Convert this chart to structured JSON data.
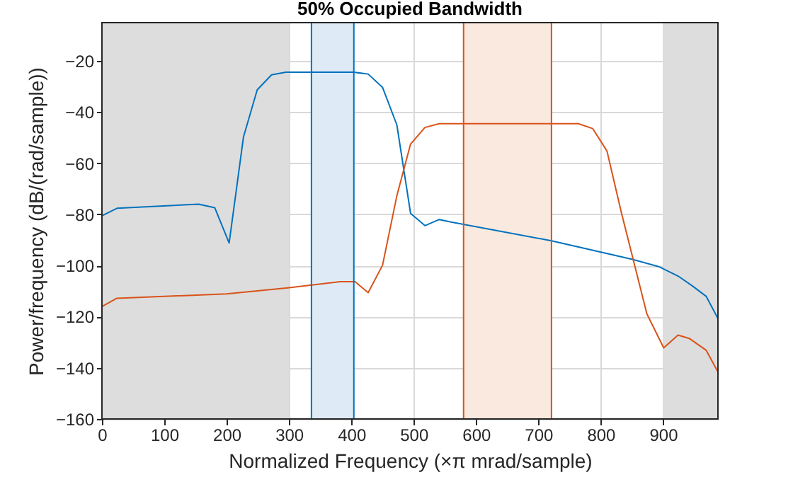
{
  "chart_data": {
    "type": "line",
    "title": "50% Occupied Bandwidth",
    "xlabel": "Normalized Frequency  (×π mrad/sample)",
    "ylabel": "Power/frequency (dB/(rad/sample))",
    "xlim": [
      0,
      988
    ],
    "ylim": [
      -160,
      -5
    ],
    "xticks": [
      0,
      100,
      200,
      300,
      400,
      500,
      600,
      700,
      800,
      900
    ],
    "yticks": [
      -160,
      -140,
      -120,
      -100,
      -80,
      -60,
      -40,
      -20
    ],
    "grid": true,
    "bands": [
      {
        "axis": "x",
        "from": 0,
        "to": 300,
        "color": "#dddddd"
      },
      {
        "axis": "x",
        "from": 900,
        "to": 988,
        "color": "#dddddd"
      },
      {
        "axis": "x",
        "from": 336,
        "to": 404,
        "color": "#deebf7"
      },
      {
        "axis": "x",
        "from": 580,
        "to": 721,
        "color": "#fae9df"
      }
    ],
    "ref_lines": [
      {
        "axis": "x",
        "value": 336,
        "color": "#0072bd"
      },
      {
        "axis": "x",
        "value": 404,
        "color": "#0072bd"
      },
      {
        "axis": "x",
        "value": 580,
        "color": "#d95319"
      },
      {
        "axis": "x",
        "value": 721,
        "color": "#d95319"
      }
    ],
    "series": [
      {
        "color": "#0072bd",
        "x": [
          0,
          24,
          155,
          181,
          204,
          227,
          249,
          272,
          295,
          404,
          427,
          450,
          473,
          495,
          518,
          541,
          560,
          721,
          851,
          893,
          924,
          946,
          969,
          988
        ],
        "values": [
          -80.5,
          -77.6,
          -76,
          -77.4,
          -91.2,
          -49.7,
          -31.3,
          -25.4,
          -24.4,
          -24.4,
          -25.1,
          -30.3,
          -45,
          -79.6,
          -84.4,
          -82,
          -83,
          -90.3,
          -97.6,
          -100.4,
          -104.1,
          -107.8,
          -112,
          -120.7
        ]
      },
      {
        "color": "#d95319",
        "x": [
          0,
          24,
          200,
          298,
          382,
          406,
          427,
          450,
          473,
          495,
          518,
          541,
          764,
          787,
          810,
          833,
          874,
          901,
          924,
          942,
          969,
          988
        ],
        "values": [
          -116,
          -112.8,
          -111.1,
          -108.7,
          -106.3,
          -106.3,
          -110.6,
          -99.9,
          -72.7,
          -52.5,
          -46,
          -44.5,
          -44.5,
          -46.4,
          -55.2,
          -79.2,
          -118.9,
          -132.2,
          -127.2,
          -128.5,
          -133.1,
          -141.6
        ]
      }
    ]
  }
}
